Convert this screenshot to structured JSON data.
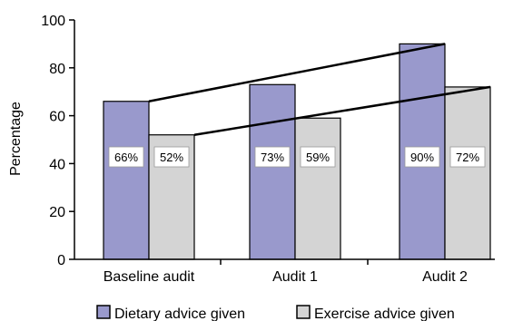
{
  "chart_data": {
    "type": "bar",
    "categories": [
      "Baseline audit",
      "Audit 1",
      "Audit 2"
    ],
    "series": [
      {
        "name": "Dietary advice given",
        "values": [
          66,
          73,
          90
        ],
        "labels": [
          "66%",
          "73%",
          "90%"
        ],
        "color": "#9999cc"
      },
      {
        "name": "Exercise advice given",
        "values": [
          52,
          59,
          72
        ],
        "labels": [
          "52%",
          "59%",
          "72%"
        ],
        "color": "#d4d4d4"
      }
    ],
    "ylabel": "Percentage",
    "ylim": [
      0,
      100
    ],
    "yticks": [
      0,
      20,
      40,
      60,
      80,
      100
    ],
    "trend_lines": [
      {
        "series": "Dietary advice given",
        "from": "Baseline audit",
        "to": "Audit 2"
      },
      {
        "series": "Exercise advice given",
        "from": "Baseline audit",
        "to": "Audit 2"
      }
    ],
    "legend": "bottom",
    "grid": false
  }
}
